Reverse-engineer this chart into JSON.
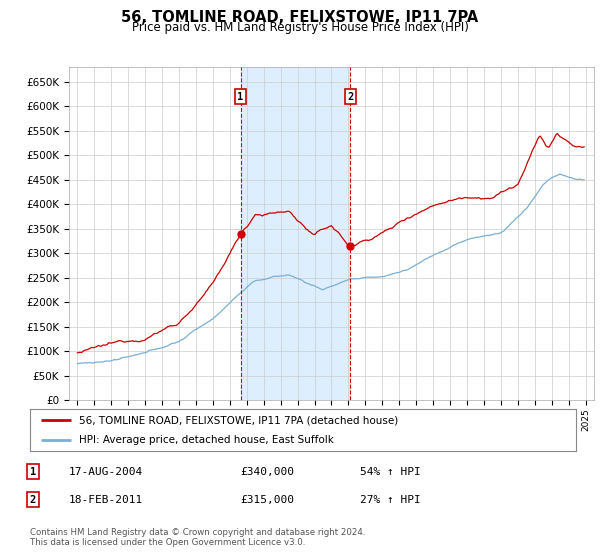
{
  "title": "56, TOMLINE ROAD, FELIXSTOWE, IP11 7PA",
  "subtitle": "Price paid vs. HM Land Registry's House Price Index (HPI)",
  "ylim": [
    0,
    680000
  ],
  "yticks": [
    0,
    50000,
    100000,
    150000,
    200000,
    250000,
    300000,
    350000,
    400000,
    450000,
    500000,
    550000,
    600000,
    650000
  ],
  "ytick_labels": [
    "£0",
    "£50K",
    "£100K",
    "£150K",
    "£200K",
    "£250K",
    "£300K",
    "£350K",
    "£400K",
    "£450K",
    "£500K",
    "£550K",
    "£600K",
    "£650K"
  ],
  "red_line_color": "#cc0000",
  "blue_line_color": "#7bafd4",
  "shaded_region_color": "#ddeeff",
  "marker1_year": 2004.63,
  "marker1_value": 340000,
  "marker2_year": 2011.12,
  "marker2_value": 315000,
  "legend_line1": "56, TOMLINE ROAD, FELIXSTOWE, IP11 7PA (detached house)",
  "legend_line2": "HPI: Average price, detached house, East Suffolk",
  "table_row1": [
    "1",
    "17-AUG-2004",
    "£340,000",
    "54% ↑ HPI"
  ],
  "table_row2": [
    "2",
    "18-FEB-2011",
    "£315,000",
    "27% ↑ HPI"
  ],
  "footnote": "Contains HM Land Registry data © Crown copyright and database right 2024.\nThis data is licensed under the Open Government Licence v3.0.",
  "background_color": "#ffffff",
  "plot_bg_color": "#ffffff",
  "grid_color": "#cccccc"
}
